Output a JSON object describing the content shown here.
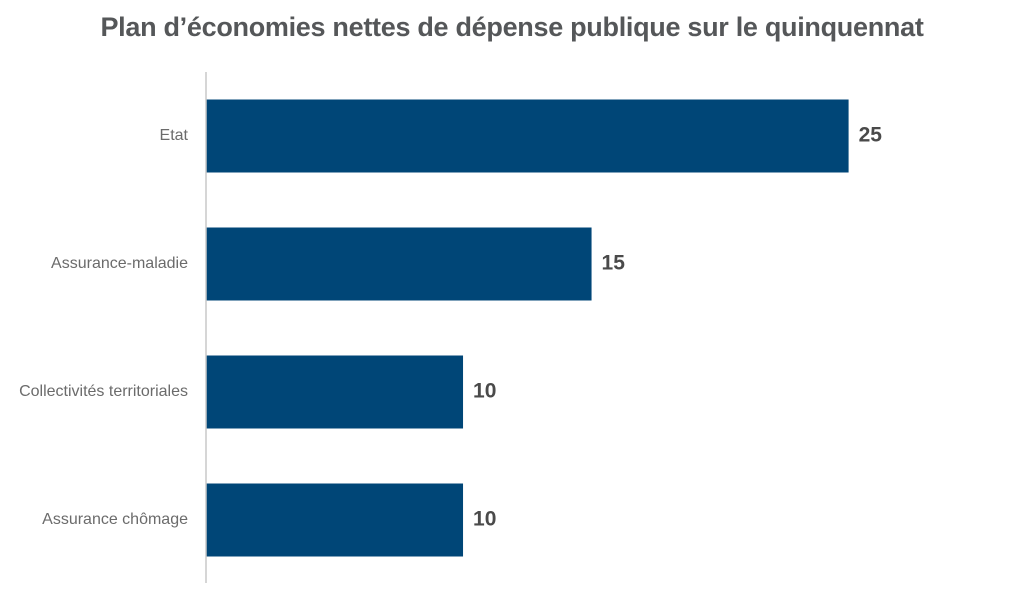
{
  "chart_data": {
    "type": "bar",
    "orientation": "horizontal",
    "title": "Plan d’économies nettes de dépense publique sur le quinquennat",
    "xlabel": "",
    "ylabel": "",
    "categories": [
      "Etat",
      "Assurance-maladie",
      "Collectivités territoriales",
      "Assurance chômage"
    ],
    "values": [
      25,
      15,
      10,
      10
    ],
    "value_labels": [
      "25",
      "15",
      "10",
      "10"
    ],
    "xlim": [
      0,
      27
    ],
    "grid": false,
    "legend": "none",
    "bar_color": "#004677",
    "axis_color": "#c8c8c8"
  }
}
